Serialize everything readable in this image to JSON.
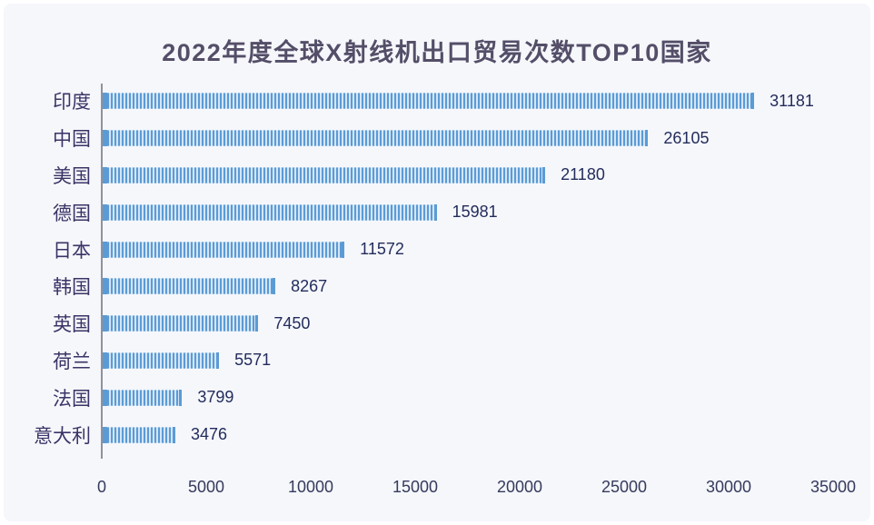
{
  "page": {
    "background": "#ffffff",
    "panel_background": "#f5f7fb"
  },
  "chart_data": {
    "type": "bar",
    "orientation": "horizontal",
    "title": "2022年度全球X射线机出口贸易次数TOP10国家",
    "categories": [
      "印度",
      "中国",
      "美国",
      "德国",
      "日本",
      "韩国",
      "英国",
      "荷兰",
      "法国",
      "意大利"
    ],
    "values": [
      31181,
      26105,
      21180,
      15981,
      11572,
      8267,
      7450,
      5571,
      3799,
      3476
    ],
    "value_labels": [
      "31181",
      "26105",
      "21180",
      "15981",
      "11572",
      "8267",
      "7450",
      "5571",
      "3799",
      "3476"
    ],
    "xlim": [
      0,
      35000
    ],
    "x_ticks": [
      0,
      5000,
      10000,
      15000,
      20000,
      25000,
      30000,
      35000
    ],
    "x_tick_labels": [
      "0",
      "5000",
      "10000",
      "15000",
      "20000",
      "25000",
      "30000",
      "35000"
    ],
    "grid": false,
    "legend_position": "none",
    "colors": {
      "bar_stripe_dark": "#5b9bd5",
      "bar_stripe_light": "#d4e5f6",
      "title_text": "#544e68",
      "category_text": "#3b3366",
      "value_text": "#232c5c",
      "axis_tick_text": "#363a5c",
      "axis_line": "#8f929d"
    }
  }
}
